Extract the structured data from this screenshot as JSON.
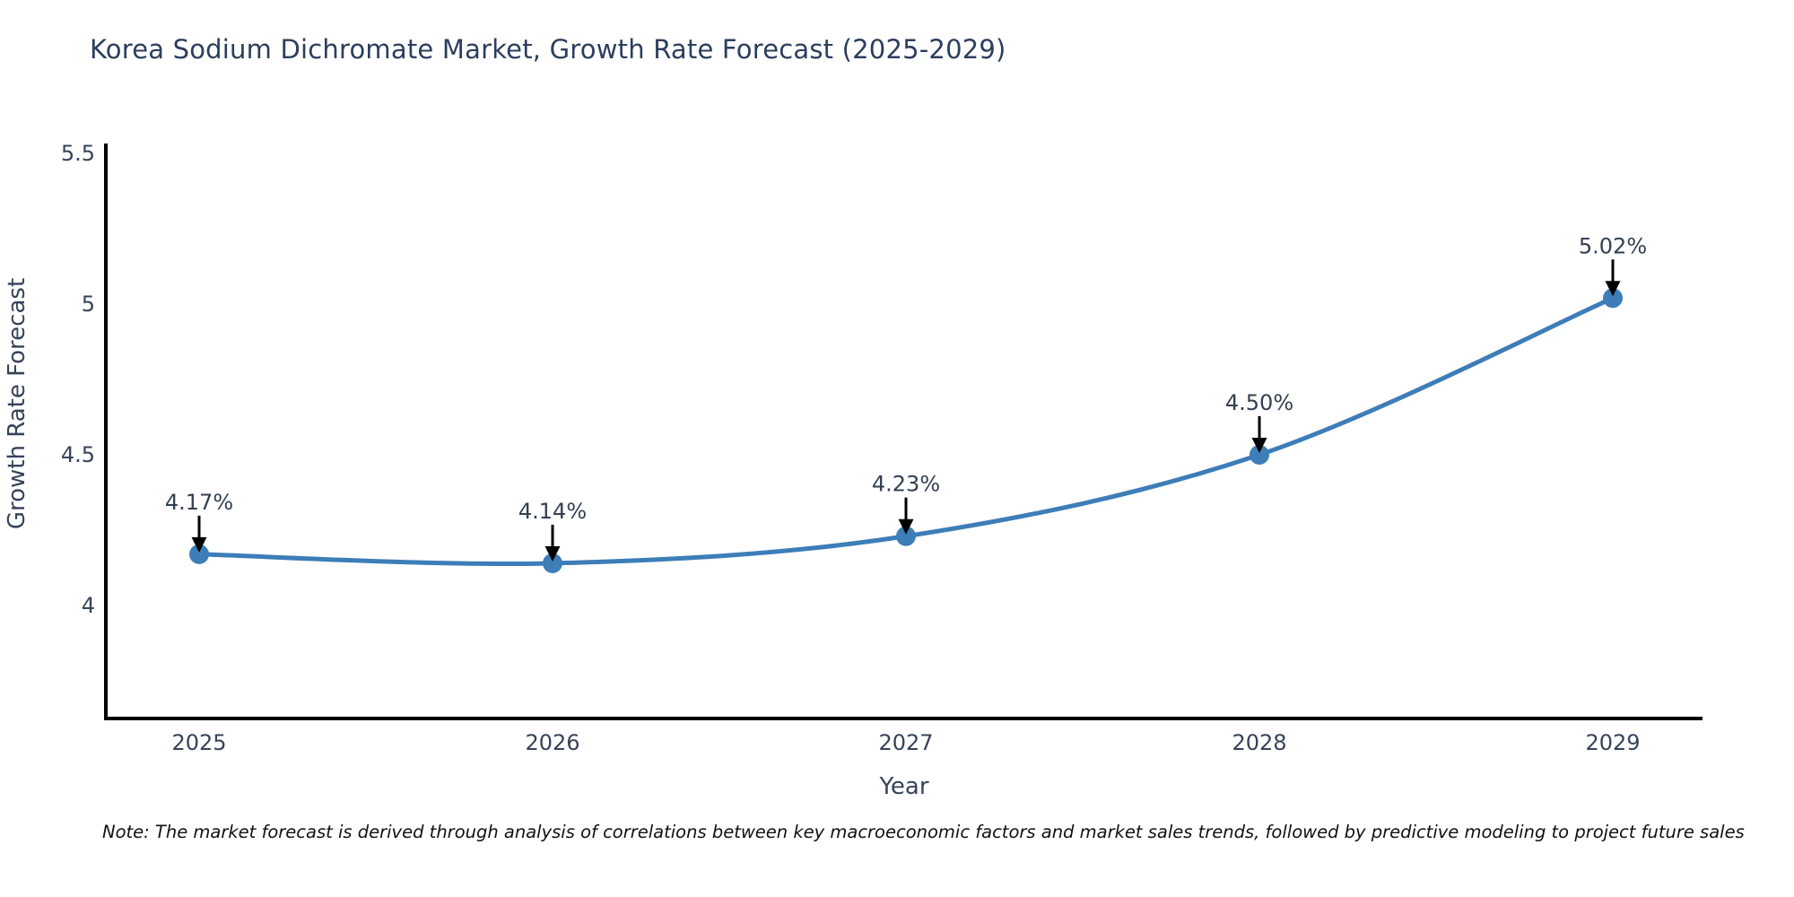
{
  "title": "Korea Sodium Dichromate Market, Growth Rate Forecast (2025-2029)",
  "note": "Note: The market forecast is derived through analysis of correlations between key macroeconomic factors and market sales trends, followed by predictive modeling to project future sales",
  "chart_data": {
    "type": "line",
    "title": "Korea Sodium Dichromate Market, Growth Rate Forecast (2025-2029)",
    "xlabel": "Year",
    "ylabel": "Growth Rate Forecast",
    "x": [
      2025,
      2026,
      2027,
      2028,
      2029
    ],
    "y": [
      4.17,
      4.14,
      4.23,
      4.5,
      5.02
    ],
    "point_labels": [
      "4.17%",
      "4.14%",
      "4.23%",
      "4.50%",
      "5.02%"
    ],
    "xtick_labels": [
      "2025",
      "2026",
      "2027",
      "2028",
      "2029"
    ],
    "yticks": [
      4,
      4.5,
      5,
      5.5
    ],
    "ytick_labels": [
      "4",
      "4.5",
      "5",
      "5.5"
    ],
    "ylim": [
      3.62,
      5.53
    ],
    "grid": false,
    "legend": null,
    "smooth": true,
    "marker": "circle",
    "annotation_arrows": true,
    "colors": {
      "line": "#3d7db8",
      "marker": "#3d7db8",
      "spine": "#000000",
      "arrow": "#000000",
      "title": "#2c3e5d",
      "tick_label": "#37435a",
      "axis_label": "#37435a",
      "annotation_text": "#333f52",
      "note_text": "#111111",
      "background": "#ffffff"
    }
  }
}
